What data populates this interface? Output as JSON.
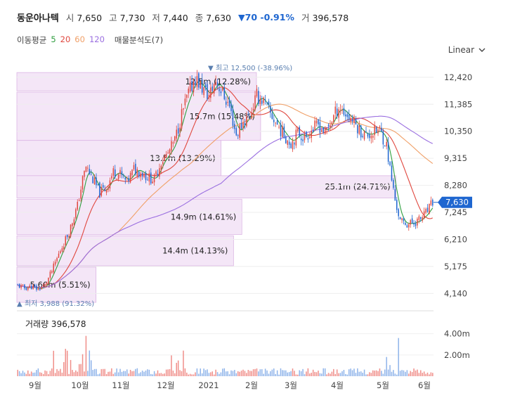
{
  "header": {
    "name": "동운아나텍",
    "open_label": "시",
    "open": "7,650",
    "high_label": "고",
    "high": "7,730",
    "low_label": "저",
    "low": "7,440",
    "close_label": "종",
    "close": "7,630",
    "change_arrow": "▼",
    "change": "70",
    "change_pct": "-0.91%",
    "volume_label": "거",
    "volume": "396,578"
  },
  "ma": {
    "label": "이동평균",
    "periods": [
      {
        "value": "5",
        "color": "#2e9e3e"
      },
      {
        "value": "20",
        "color": "#e0473e"
      },
      {
        "value": "60",
        "color": "#f0a068"
      },
      {
        "value": "120",
        "color": "#9a6ee0"
      }
    ],
    "profile_label": "매물분석도(7)"
  },
  "scale": {
    "label": "Linear"
  },
  "colors": {
    "up": "#e0473e",
    "down": "#1e66d0",
    "profile": "#f4e6f7",
    "profile_border": "#dcb6e4"
  },
  "chart_data": {
    "type": "candlestick",
    "y_ticks": [
      "12,420",
      "11,385",
      "10,350",
      "9,315",
      "8,280",
      "7,245",
      "6,210",
      "5,175",
      "4,140"
    ],
    "y_tick_values": [
      12420,
      11385,
      10350,
      9315,
      8280,
      7245,
      6210,
      5175,
      4140
    ],
    "ylim": [
      3800,
      12900
    ],
    "x_ticks": [
      "9월",
      "10월",
      "11월",
      "12월",
      "2021",
      "2월",
      "3월",
      "4월",
      "5월",
      "6월"
    ],
    "current_price": "7,630",
    "max_label": "▼ 최고 12,500 (-38.96%)",
    "min_label": "▲ 최저 3,988 (91.32%)",
    "close_path": [
      [
        0,
        4450
      ],
      [
        4,
        4350
      ],
      [
        8,
        4400
      ],
      [
        12,
        4300
      ],
      [
        16,
        4450
      ],
      [
        20,
        5000
      ],
      [
        25,
        5800
      ],
      [
        30,
        6500
      ],
      [
        35,
        7500
      ],
      [
        38,
        8500
      ],
      [
        40,
        9000
      ],
      [
        44,
        8500
      ],
      [
        48,
        8000
      ],
      [
        52,
        8200
      ],
      [
        56,
        8800
      ],
      [
        60,
        8700
      ],
      [
        64,
        8400
      ],
      [
        68,
        8900
      ],
      [
        72,
        8800
      ],
      [
        76,
        8600
      ],
      [
        80,
        8500
      ],
      [
        84,
        9200
      ],
      [
        88,
        9500
      ],
      [
        92,
        10000
      ],
      [
        96,
        11000
      ],
      [
        100,
        11800
      ],
      [
        104,
        12400
      ],
      [
        108,
        12000
      ],
      [
        112,
        11700
      ],
      [
        116,
        12300
      ],
      [
        120,
        11800
      ],
      [
        124,
        11300
      ],
      [
        128,
        10200
      ],
      [
        132,
        10700
      ],
      [
        136,
        11000
      ],
      [
        140,
        11700
      ],
      [
        144,
        11500
      ],
      [
        148,
        11000
      ],
      [
        152,
        10600
      ],
      [
        156,
        10200
      ],
      [
        160,
        9900
      ],
      [
        164,
        10300
      ],
      [
        168,
        10100
      ],
      [
        172,
        10400
      ],
      [
        176,
        10600
      ],
      [
        180,
        10300
      ],
      [
        184,
        10800
      ],
      [
        188,
        11300
      ],
      [
        192,
        11000
      ],
      [
        196,
        10800
      ],
      [
        200,
        10400
      ],
      [
        204,
        10200
      ],
      [
        208,
        10300
      ],
      [
        212,
        10400
      ],
      [
        216,
        9800
      ],
      [
        218,
        8900
      ],
      [
        221,
        7700
      ],
      [
        224,
        6900
      ],
      [
        228,
        6800
      ],
      [
        232,
        6850
      ],
      [
        236,
        7000
      ],
      [
        240,
        7300
      ],
      [
        243,
        7630
      ]
    ],
    "volume": {
      "label": "거래량",
      "value": "396,578",
      "y_ticks": [
        "4.00m",
        "2.00m"
      ],
      "y_tick_values": [
        4000000,
        2000000
      ],
      "ylim": [
        0,
        5500000
      ]
    },
    "volume_profile": [
      {
        "label": "12.5m (12.28%)",
        "price_low": 11900,
        "price_high": 12600,
        "width_frac": 0.575
      },
      {
        "label": "15.7m (15.48%)",
        "price_low": 10000,
        "price_high": 11850,
        "width_frac": 0.585
      },
      {
        "label": "13.5m (13.29%)",
        "price_low": 8650,
        "price_high": 10000,
        "width_frac": 0.49
      },
      {
        "label": "25.1m (24.71%)",
        "price_low": 7800,
        "price_high": 8650,
        "width_frac": 0.91
      },
      {
        "label": "14.9m (14.61%)",
        "price_low": 6400,
        "price_high": 7750,
        "width_frac": 0.54
      },
      {
        "label": "14.4m (14.13%)",
        "price_low": 5200,
        "price_high": 6350,
        "width_frac": 0.52
      },
      {
        "label": "5.60m (5.51%)",
        "price_low": 3800,
        "price_high": 5150,
        "width_frac": 0.19
      }
    ]
  }
}
